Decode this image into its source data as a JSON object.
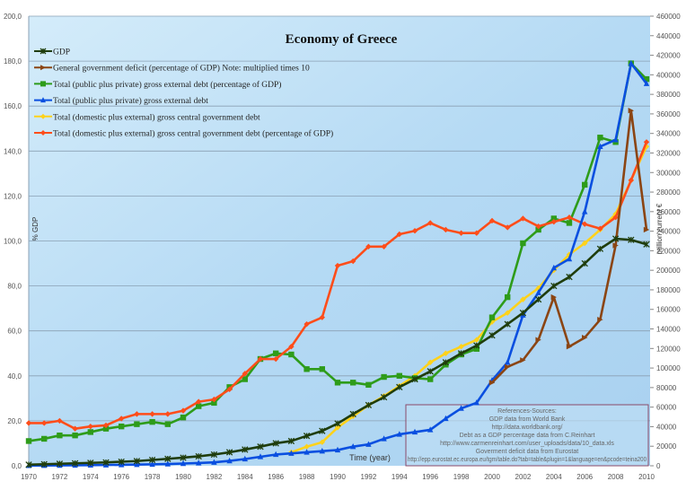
{
  "chart_data": {
    "type": "line",
    "title": "Economy of Greece",
    "xlabel": "Time (year)",
    "ylabel_left": "% GDP",
    "ylabel_right": "million current €",
    "xlim": [
      1970,
      2010
    ],
    "ylim_left": [
      0,
      200
    ],
    "ylim_right": [
      0,
      460000
    ],
    "grid": true,
    "legend_placement": "top-left",
    "x_ticks": [
      "1970",
      "1972",
      "1974",
      "1976",
      "1978",
      "1980",
      "1982",
      "1984",
      "1986",
      "1988",
      "1990",
      "1992",
      "1994",
      "1996",
      "1998",
      "2000",
      "2002",
      "2004",
      "2006",
      "2008",
      "2010"
    ],
    "y_ticks_left": [
      "0,0",
      "20,0",
      "40,0",
      "60,0",
      "80,0",
      "100,0",
      "120,0",
      "140,0",
      "160,0",
      "180,0",
      "200,0"
    ],
    "y_ticks_right": [
      "0",
      "20000",
      "40000",
      "60000",
      "80000",
      "100000",
      "120000",
      "140000",
      "160000",
      "180000",
      "200000",
      "220000",
      "240000",
      "260000",
      "280000",
      "300000",
      "320000",
      "340000",
      "360000",
      "380000",
      "400000",
      "420000",
      "440000",
      "460000"
    ],
    "series": [
      {
        "name": "GDP",
        "axis": "right",
        "color": "#1f3d0c",
        "marker": "star",
        "start": 1970,
        "values": [
          1150,
          1610,
          2070,
          2530,
          2990,
          3450,
          4140,
          4830,
          5980,
          7130,
          8280,
          9660,
          11500,
          13800,
          16560,
          19550,
          23000,
          25300,
          30590,
          35650,
          43240,
          52900,
          62100,
          70150,
          80500,
          88550,
          96600,
          105800,
          115000,
          123050,
          133400,
          144900,
          156400,
          170200,
          184000,
          193200,
          207000,
          221950,
          232300,
          231150,
          226550
        ]
      },
      {
        "name": "General government deficit (percentage of GDP) Note: multiplied times 10",
        "axis": "left",
        "color": "#8b4513",
        "marker": "triangle-right",
        "start": 2000,
        "values": [
          37,
          44,
          47,
          56,
          75,
          53,
          57,
          65,
          98,
          158,
          105
        ]
      },
      {
        "name": "Total (public plus private) gross external debt (percentage of GDP)",
        "axis": "left",
        "color": "#2e9c1a",
        "marker": "square",
        "start": 1970,
        "values": [
          11,
          12,
          13.5,
          13.5,
          15,
          16.5,
          17.5,
          18.5,
          19.5,
          18.5,
          21.5,
          26.5,
          28,
          35,
          38.5,
          47.5,
          50,
          49.5,
          43,
          43,
          37,
          37,
          36,
          39.5,
          40,
          39,
          38.5,
          45,
          49.5,
          52,
          66,
          75,
          99,
          105,
          110,
          108,
          125,
          146,
          144,
          179,
          172
        ]
      },
      {
        "name": "Total (public plus private) gross external debt",
        "axis": "right",
        "color": "#0a4fe0",
        "marker": "triangle",
        "start": 1970,
        "values": [
          200,
          300,
          400,
          500,
          600,
          800,
          1000,
          1200,
          1500,
          1800,
          2300,
          2800,
          3500,
          5000,
          6900,
          9200,
          11500,
          12700,
          13800,
          15000,
          16100,
          19600,
          21900,
          27600,
          32200,
          34500,
          36800,
          48300,
          58700,
          64400,
          87400,
          105800,
          154100,
          177100,
          202400,
          211600,
          259900,
          326600,
          333500,
          411700,
          391000
        ]
      },
      {
        "name": "Total (domestic plus external) gross central government debt",
        "axis": "right",
        "color": "#ffd21a",
        "marker": "diamond",
        "start": 1987,
        "values": [
          13800,
          19550,
          24150,
          39100,
          50600,
          62100,
          71300,
          81650,
          92000,
          105800,
          115000,
          121900,
          128800,
          147200,
          156400,
          170200,
          181700,
          200100,
          216200,
          227700,
          241500,
          257600,
          292100,
          326600
        ]
      },
      {
        "name": "Total (domestic plus external) gross central government debt (percentage of GDP)",
        "axis": "left",
        "color": "#ff4d1a",
        "marker": "diamond",
        "start": 1970,
        "values": [
          19,
          19,
          20,
          16.5,
          17.5,
          18,
          21,
          23,
          23,
          23,
          24.5,
          28.5,
          29.5,
          34,
          41,
          47.5,
          47.5,
          53,
          63,
          66,
          89,
          91,
          97.5,
          97.5,
          103,
          104.5,
          108,
          105,
          103.5,
          103.5,
          109,
          106,
          110,
          106.5,
          108.5,
          110.5,
          107.5,
          105.5,
          110.5,
          127,
          144
        ]
      }
    ],
    "references": [
      "References-Sources:",
      "GDP data from World Bank",
      "http://data.worldbank.org/",
      "Debt as a GDP percentage data from C.Reinhart",
      "http://www.carmenreinhart.com/user_uploads/data/10_data.xls",
      "Goverment deficit data from Eurostat",
      "http://epp.eurostat.ec.europa.eu/tgm/table.do?tab=table&plugin=1&language=en&pcode=teina200"
    ]
  }
}
